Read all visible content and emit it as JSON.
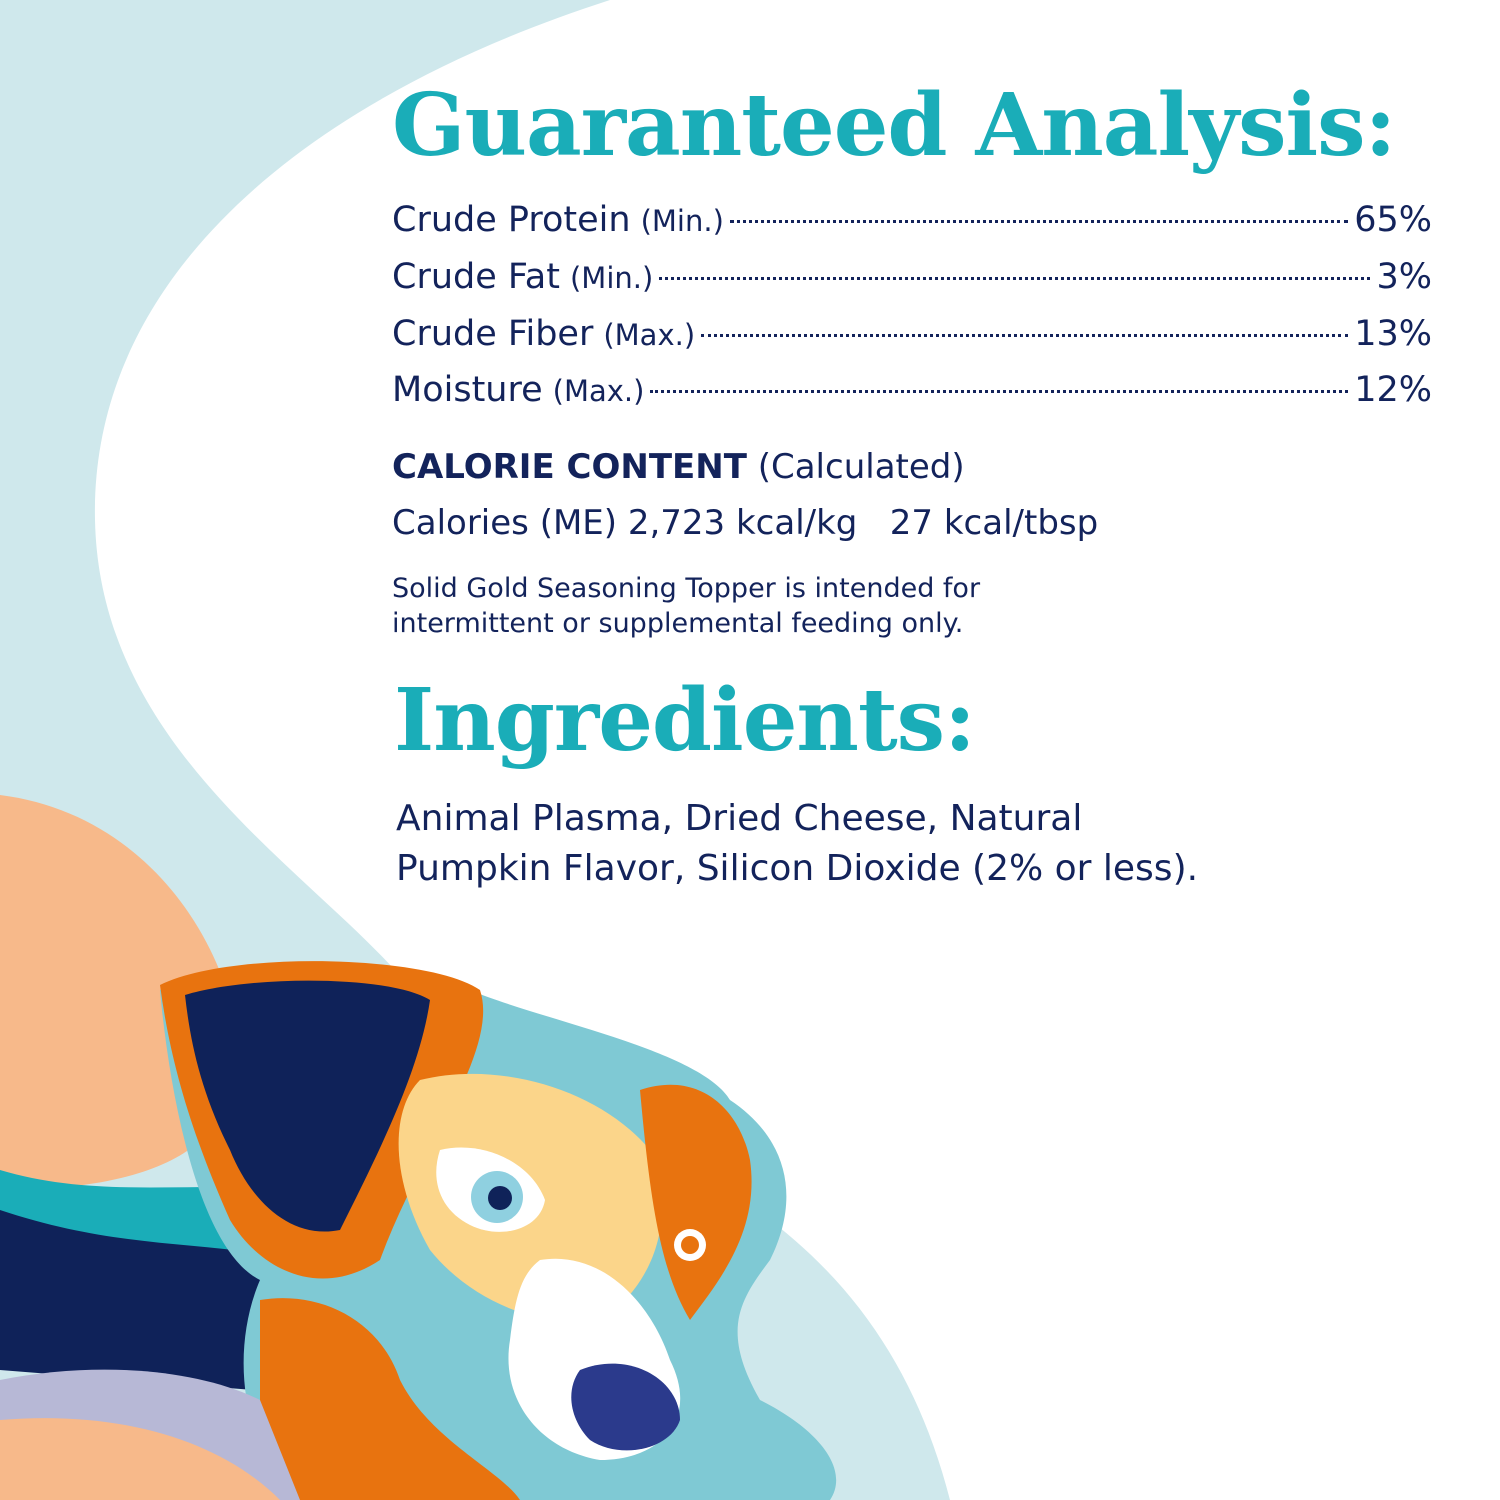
{
  "colors": {
    "accent": "#1aadb8",
    "text": "#13235b",
    "background_curve": "#cfe8ec",
    "peach": "#f7b98a",
    "orange": "#e8730f",
    "navy": "#0f2259"
  },
  "analysis": {
    "title": "Guaranteed Analysis:",
    "rows": [
      {
        "label": "Crude Protein",
        "qualifier": "(Min.)",
        "value": "65%"
      },
      {
        "label": "Crude Fat",
        "qualifier": "(Min.)",
        "value": "3%"
      },
      {
        "label": "Crude Fiber",
        "qualifier": "(Max.)",
        "value": "13%"
      },
      {
        "label": "Moisture",
        "qualifier": "(Max.)",
        "value": "12%"
      }
    ]
  },
  "calorie": {
    "heading": "CALORIE CONTENT",
    "heading_note": "(Calculated)",
    "line": "Calories (ME) 2,723 kcal/kg   27 kcal/tbsp"
  },
  "note": {
    "line1": "Solid Gold Seasoning Topper is intended for",
    "line2": "intermittent or supplemental feeding only."
  },
  "ingredients": {
    "title": "Ingredients:",
    "line1": "Animal Plasma, Dried Cheese, Natural",
    "line2": "Pumpkin Flavor, Silicon Dioxide (2% or less)."
  },
  "illustration": {
    "subject": "dog-illustration"
  }
}
